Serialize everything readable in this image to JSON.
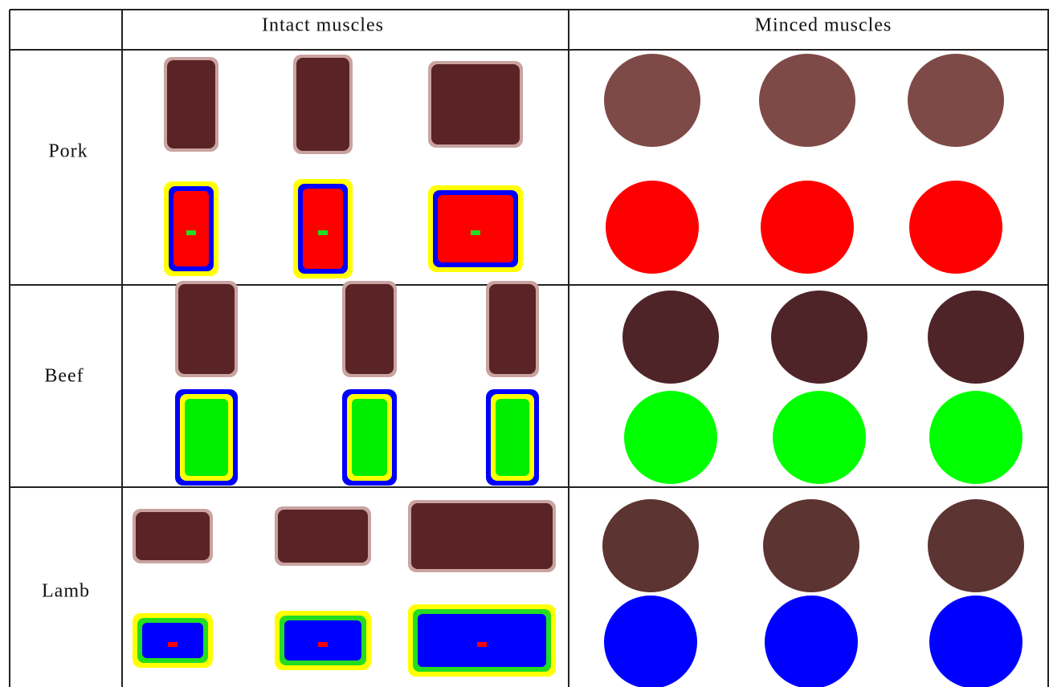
{
  "header": {
    "columns": [
      "Intact muscles",
      "Minced muscles"
    ]
  },
  "rows": [
    {
      "label": "Pork"
    },
    {
      "label": "Beef"
    },
    {
      "label": "Lamb"
    }
  ]
}
